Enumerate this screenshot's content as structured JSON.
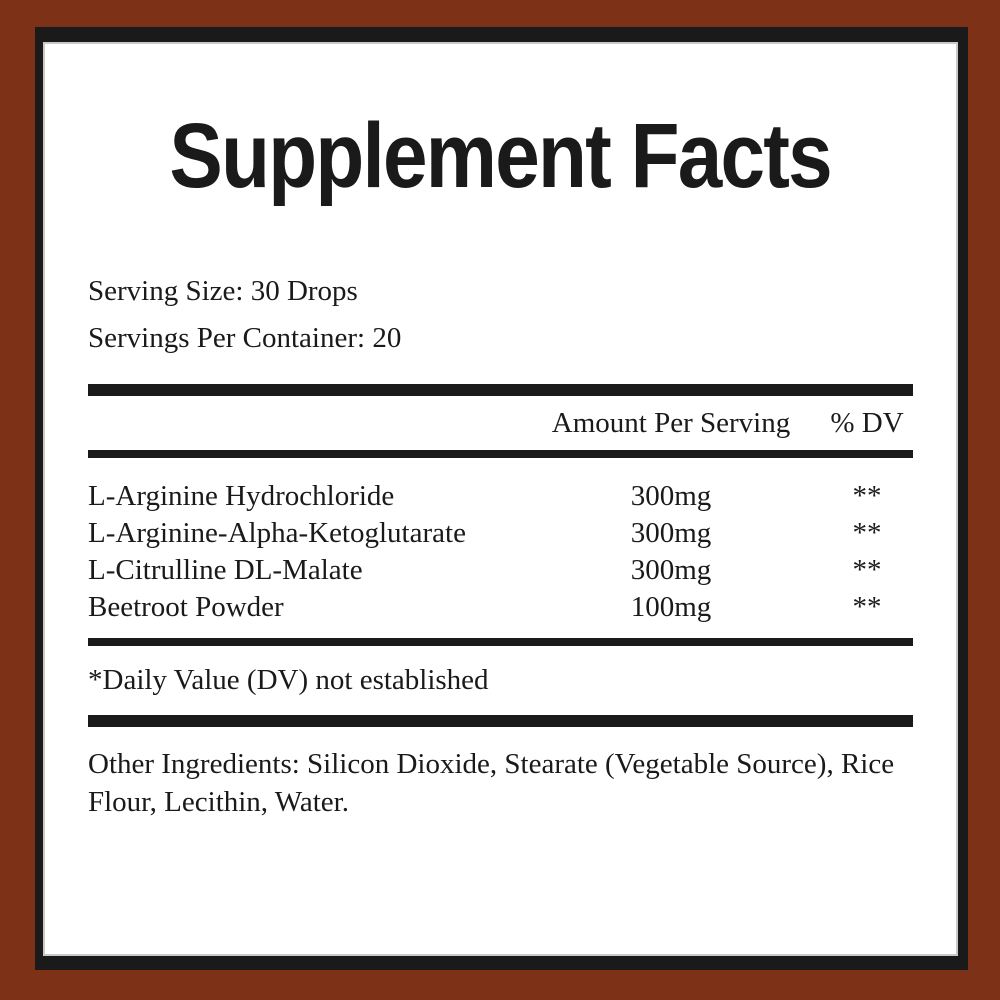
{
  "label": {
    "title": "Supplement Facts",
    "serving_size": "Serving Size: 30 Drops",
    "servings_per_container": "Servings Per Container: 20",
    "columns": {
      "amount": "Amount Per Serving",
      "dv": "% DV"
    },
    "rows": [
      {
        "name": "L-Arginine Hydrochloride",
        "amount": "300mg",
        "dv": "**"
      },
      {
        "name": "L-Arginine-Alpha-Ketoglutarate",
        "amount": "300mg",
        "dv": "**"
      },
      {
        "name": "L-Citrulline DL-Malate",
        "amount": "300mg",
        "dv": "**"
      },
      {
        "name": "Beetroot Powder",
        "amount": "100mg",
        "dv": "**"
      }
    ],
    "footnote": "*Daily Value (DV) not established",
    "other_ingredients": "Other Ingredients: Silicon Dioxide, Stearate (Vegetable Source), Rice Flour, Lecithin, Water."
  },
  "colors": {
    "background": "#7D3116",
    "frame_border": "#1a1a1a",
    "panel": "#ffffff",
    "inner_edge": "#c9c9c9",
    "text": "#1a1a1a"
  }
}
